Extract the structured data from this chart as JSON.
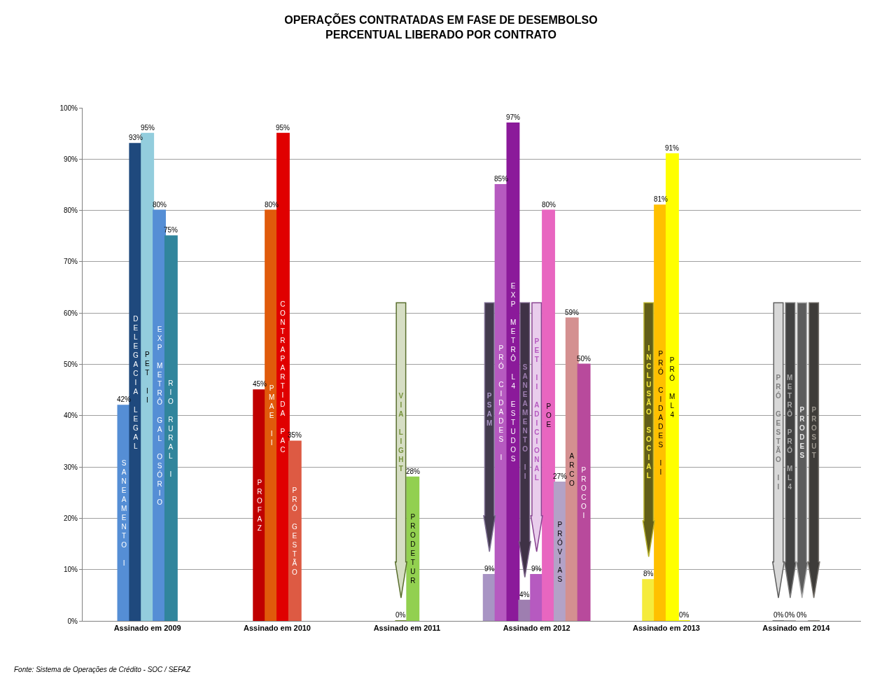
{
  "chart_data": {
    "type": "bar",
    "title": "OPERAÇÕES CONTRATADAS EM FASE DE DESEMBOLSO",
    "subtitle": "PERCENTUAL LIBERADO POR CONTRATO",
    "categories": [
      "Assinado em 2009",
      "Assinado em 2010",
      "Assinado em 2011",
      "Assinado em 2012",
      "Assinado em 2013",
      "Assinado em 2014"
    ],
    "series": [
      {
        "name": "SANEAMENTO I",
        "color": "#558ed5",
        "values": [
          42,
          null,
          null,
          null,
          null,
          null
        ],
        "value_labels": [
          "42%",
          null,
          null,
          null,
          null,
          null
        ]
      },
      {
        "name": "DELEGACIA LEGAL",
        "color": "#1f497d",
        "values": [
          93,
          null,
          null,
          null,
          null,
          null
        ],
        "value_labels": [
          "93%",
          null,
          null,
          null,
          null,
          null
        ]
      },
      {
        "name": "PET II",
        "color": "#93cddd",
        "values": [
          95,
          null,
          null,
          null,
          null,
          null
        ],
        "value_labels": [
          "95%",
          null,
          null,
          null,
          null,
          null
        ]
      },
      {
        "name": "EXP METRÔ GAL OSÓRIO",
        "color": "#558ed5",
        "values": [
          80,
          null,
          null,
          null,
          null,
          null
        ],
        "value_labels": [
          "80%",
          null,
          null,
          null,
          null,
          null
        ]
      },
      {
        "name": "RIO RURAL I",
        "color": "#31859c",
        "values": [
          75,
          null,
          null,
          null,
          null,
          null
        ],
        "value_labels": [
          "75%",
          null,
          null,
          null,
          null,
          null
        ]
      },
      {
        "name": "PROFAZ",
        "color": "#c00000",
        "values": [
          null,
          45,
          null,
          null,
          null,
          null
        ],
        "value_labels": [
          null,
          "45%",
          null,
          null,
          null,
          null
        ]
      },
      {
        "name": "PMAE II",
        "color": "#e05a0b",
        "values": [
          null,
          80,
          null,
          null,
          null,
          null
        ],
        "value_labels": [
          null,
          "80%",
          null,
          null,
          null,
          null
        ]
      },
      {
        "name": "CONTRAPARTIDA PAC",
        "color": "#e00000",
        "values": [
          null,
          95,
          null,
          null,
          null,
          null
        ],
        "value_labels": [
          null,
          "95%",
          null,
          null,
          null,
          null
        ]
      },
      {
        "name": "PRÓ GESTÃO",
        "color": "#dd5a43",
        "values": [
          null,
          35,
          null,
          null,
          null,
          null
        ],
        "value_labels": [
          null,
          "35%",
          null,
          null,
          null,
          null
        ]
      },
      {
        "name": "VIA LIGHT",
        "color": "#77933c",
        "values": [
          null,
          null,
          0,
          null,
          null,
          null
        ],
        "value_labels": [
          null,
          null,
          "0%",
          null,
          null,
          null
        ]
      },
      {
        "name": "PRODETUR",
        "color": "#92d050",
        "values": [
          null,
          null,
          28,
          null,
          null,
          null
        ],
        "value_labels": [
          null,
          null,
          "28%",
          null,
          null,
          null
        ]
      },
      {
        "name": "PSAM",
        "color": "#a894c4",
        "values": [
          null,
          null,
          null,
          9,
          null,
          null
        ],
        "value_labels": [
          null,
          null,
          null,
          "9%",
          null,
          null
        ]
      },
      {
        "name": "PRÓ CIDADES I",
        "color": "#b65ac0",
        "values": [
          null,
          null,
          null,
          85,
          null,
          null
        ],
        "value_labels": [
          null,
          null,
          null,
          "85%",
          null,
          null
        ]
      },
      {
        "name": "EXP METRÔ L4 ESTUDOS",
        "color": "#8b1a9a",
        "values": [
          null,
          null,
          null,
          97,
          null,
          null
        ],
        "value_labels": [
          null,
          null,
          null,
          "97%",
          null,
          null
        ]
      },
      {
        "name": "SANEAMENTO II",
        "color": "#9e7eb0",
        "values": [
          null,
          null,
          null,
          4,
          null,
          null
        ],
        "value_labels": [
          null,
          null,
          null,
          "4%",
          null,
          null
        ]
      },
      {
        "name": "PET II ADICIONAL",
        "color": "#b65ac0",
        "values": [
          null,
          null,
          null,
          9,
          null,
          null
        ],
        "value_labels": [
          null,
          null,
          null,
          "9%",
          null,
          null
        ]
      },
      {
        "name": "POE",
        "color": "#e866c0",
        "values": [
          null,
          null,
          null,
          80,
          null,
          null
        ],
        "value_labels": [
          null,
          null,
          null,
          "80%",
          null,
          null
        ]
      },
      {
        "name": "PRÓVIAS",
        "color": "#b3a2c7",
        "values": [
          null,
          null,
          null,
          27,
          null,
          null
        ],
        "value_labels": [
          null,
          null,
          null,
          "27%",
          null,
          null
        ]
      },
      {
        "name": "ARCO",
        "color": "#d49090",
        "values": [
          null,
          null,
          null,
          59,
          null,
          null
        ],
        "value_labels": [
          null,
          null,
          null,
          "59%",
          null,
          null
        ]
      },
      {
        "name": "PROCOI",
        "color": "#b84a9c",
        "values": [
          null,
          null,
          null,
          50,
          null,
          null
        ],
        "value_labels": [
          null,
          null,
          null,
          "50%",
          null,
          null
        ]
      },
      {
        "name": "INCLUSÃO SOCIAL",
        "color": "#f5eb3c",
        "values": [
          null,
          null,
          null,
          null,
          8,
          null
        ],
        "value_labels": [
          null,
          null,
          null,
          null,
          "8%",
          null
        ]
      },
      {
        "name": "PRÓ CIDADES II",
        "color": "#ffc000",
        "values": [
          null,
          null,
          null,
          null,
          81,
          null
        ],
        "value_labels": [
          null,
          null,
          null,
          null,
          "81%",
          null
        ]
      },
      {
        "name": "PRÓ ML4",
        "color": "#ffff00",
        "values": [
          null,
          null,
          null,
          null,
          91,
          null
        ],
        "value_labels": [
          null,
          null,
          null,
          null,
          "91%",
          null
        ]
      },
      {
        "color": "#ffff00",
        "values": [
          null,
          null,
          null,
          null,
          0,
          null
        ],
        "value_labels": [
          null,
          null,
          null,
          null,
          "0%",
          null
        ]
      },
      {
        "name": "PRÓ GESTÃO II",
        "color": "#7f7f7f",
        "values": [
          null,
          null,
          null,
          null,
          null,
          0
        ],
        "value_labels": [
          null,
          null,
          null,
          null,
          null,
          "0%"
        ]
      },
      {
        "name": "METRÔ PRÓ ML4",
        "color": "#a6a6a6",
        "values": [
          null,
          null,
          null,
          null,
          null,
          0
        ],
        "value_labels": [
          null,
          null,
          null,
          null,
          null,
          "0%"
        ]
      },
      {
        "name": "PRODES",
        "color": "#e6e6e6",
        "values": [
          null,
          null,
          null,
          null,
          null,
          0
        ],
        "value_labels": [
          null,
          null,
          null,
          null,
          null,
          "0%"
        ]
      },
      {
        "name": "PROSUT",
        "color": "#9c978f",
        "values": [
          null,
          null,
          null,
          null,
          null,
          0
        ],
        "value_labels": [
          null,
          null,
          null,
          null,
          null,
          null
        ]
      }
    ],
    "ylim": [
      0,
      100
    ],
    "yticks": [
      {
        "value": 0,
        "label": "0%"
      },
      {
        "value": 10,
        "label": "10%"
      },
      {
        "value": 20,
        "label": "20%"
      },
      {
        "value": 30,
        "label": "30%"
      },
      {
        "value": 40,
        "label": "40%"
      },
      {
        "value": 50,
        "label": "50%"
      },
      {
        "value": 60,
        "label": "60%"
      },
      {
        "value": 70,
        "label": "70%"
      },
      {
        "value": 80,
        "label": "80%"
      },
      {
        "value": 90,
        "label": "90%"
      },
      {
        "value": 100,
        "label": "100%"
      }
    ],
    "grid": "y",
    "annotations": [
      "Fonte: Sistema de Operações de Crédito - SOC / SEFAZ"
    ]
  }
}
